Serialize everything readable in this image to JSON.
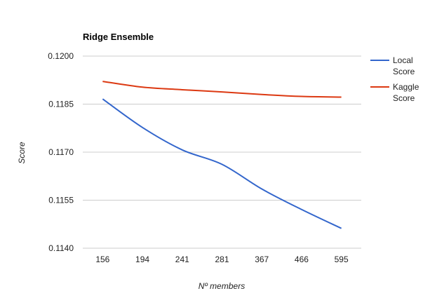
{
  "chart_data": {
    "type": "line",
    "title": "Ridge Ensemble",
    "xlabel": "Nº members",
    "ylabel": "Score",
    "categories": [
      "156",
      "194",
      "241",
      "281",
      "367",
      "466",
      "595"
    ],
    "yticks": [
      "0.1200",
      "0.1185",
      "0.1170",
      "0.1155",
      "0.1140"
    ],
    "ylim": [
      0.114,
      0.12
    ],
    "grid": true,
    "legend_position": "right",
    "series": [
      {
        "name": "Local Score",
        "legend_lines": [
          "Local",
          "Score"
        ],
        "color": "#3366cc",
        "values": [
          0.11866,
          0.11777,
          0.11707,
          0.11662,
          0.11585,
          0.11521,
          0.11462
        ]
      },
      {
        "name": "Kaggle Score",
        "legend_lines": [
          "Kaggle",
          "Score"
        ],
        "color": "#dc3912",
        "values": [
          0.11921,
          0.11903,
          0.11895,
          0.11888,
          0.1188,
          0.11874,
          0.11872
        ]
      }
    ]
  }
}
